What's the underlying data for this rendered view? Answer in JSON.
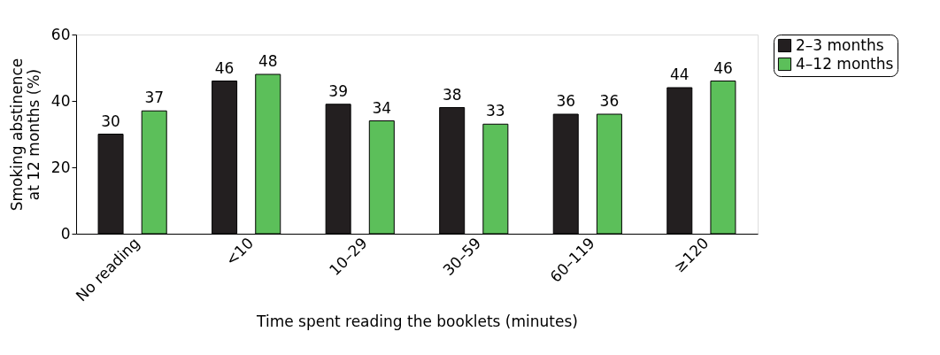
{
  "chart_data": {
    "type": "bar",
    "xlabel": "Time spent reading the booklets (minutes)",
    "ylabel": "Smoking abstinence\nat 12 months (%)",
    "categories": [
      "No reading",
      "<10",
      "10–29",
      "30–59",
      "60–119",
      "≥120"
    ],
    "series": [
      {
        "name": "2–3 months",
        "color": "#231f20",
        "values": [
          30,
          46,
          39,
          38,
          36,
          44
        ]
      },
      {
        "name": "4–12 months",
        "color": "#5cbf5a",
        "values": [
          37,
          48,
          34,
          33,
          36,
          46
        ]
      }
    ],
    "ylim": [
      0,
      60
    ],
    "yticks": [
      0,
      20,
      40,
      60
    ],
    "grid": false,
    "legend": "right",
    "data_labels": true
  }
}
